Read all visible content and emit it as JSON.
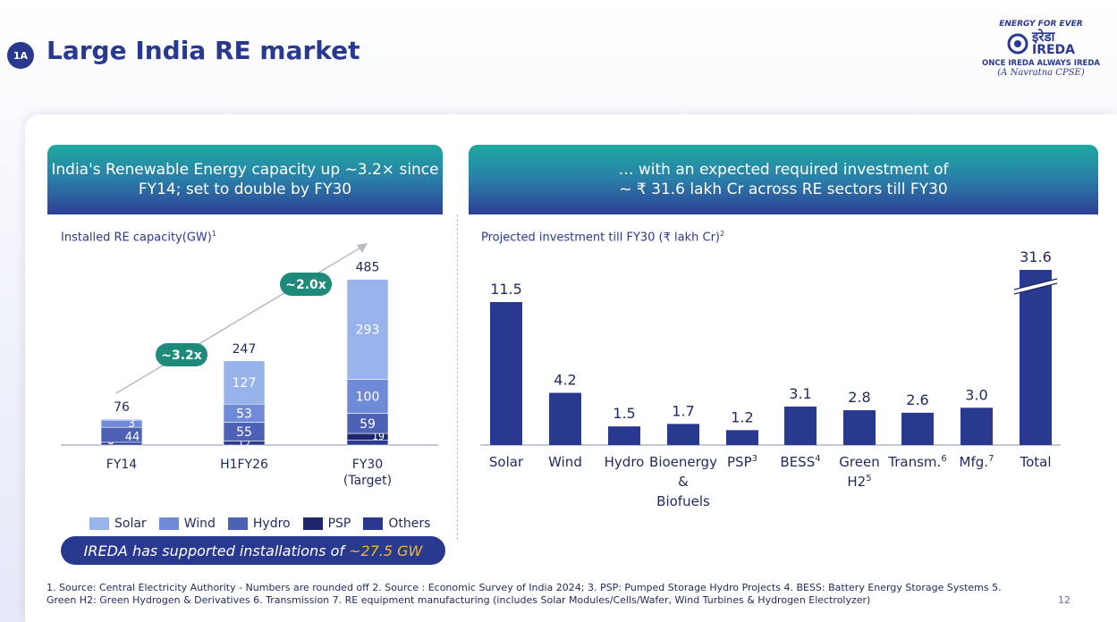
{
  "header": {
    "badge": "1A",
    "title": "Large India RE market"
  },
  "logo": {
    "tagline": "ENERGY FOR EVER",
    "hindi": "इरेडा",
    "name": "IREDA",
    "subtitle1": "ONCE IREDA ALWAYS IREDA",
    "subtitle2": "(A Navratna CPSE)"
  },
  "left_panel": {
    "heading_line1": "India's Renewable Energy capacity up ~3.2× since",
    "heading_line2": "FY14; set to double by FY30",
    "chart_subtitle": "Installed RE capacity(GW)",
    "chart_subtitle_sup": "1"
  },
  "right_panel": {
    "heading_line1": "… with an expected required investment of",
    "heading_line2": "~ ₹ 31.6 lakh Cr across RE sectors till FY30",
    "chart_subtitle": "Projected investment till FY30 (₹ lakh Cr)",
    "chart_subtitle_sup": "2"
  },
  "chart_data": [
    {
      "type": "bar",
      "stacked": true,
      "title": "Installed RE capacity(GW)",
      "categories": [
        "FY14",
        "H1FY26",
        "FY30"
      ],
      "category_sublabels": [
        "",
        "",
        "(Target)"
      ],
      "series": [
        {
          "name": "Others",
          "color": "#2a3990",
          "values": [
            8,
            12,
            15
          ]
        },
        {
          "name": "PSP",
          "color": "#1e266e",
          "values": [
            null,
            null,
            19
          ]
        },
        {
          "name": "Hydro",
          "color": "#4e62b5",
          "values": [
            44,
            55,
            59
          ]
        },
        {
          "name": "Wind",
          "color": "#6f8ad6",
          "values": [
            21,
            53,
            100
          ]
        },
        {
          "name": "Solar",
          "color": "#98b3ea",
          "values": [
            3,
            127,
            293
          ]
        }
      ],
      "totals": [
        76,
        247,
        485
      ],
      "growth_annotations": [
        "~3.2x",
        "~2.0x"
      ],
      "legend": [
        {
          "name": "Solar",
          "color": "#98b3ea"
        },
        {
          "name": "Wind",
          "color": "#6f8ad6"
        },
        {
          "name": "Hydro",
          "color": "#4e62b5"
        },
        {
          "name": "PSP",
          "color": "#1e266e"
        },
        {
          "name": "Others",
          "color": "#2a3990"
        }
      ],
      "ylim": [
        0,
        485
      ]
    },
    {
      "type": "bar",
      "title": "Projected investment till FY30 (₹ lakh Cr)",
      "categories": [
        "Solar",
        "Wind",
        "Hydro",
        "Bioenergy & Biofuels",
        "PSP",
        "BESS",
        "Green H2",
        "Transm.",
        "Mfg.",
        "Total"
      ],
      "category_lines": [
        [
          "Solar"
        ],
        [
          "Wind"
        ],
        [
          "Hydro"
        ],
        [
          "Bioenergy",
          "&",
          "Biofuels"
        ],
        [
          "PSP"
        ],
        [
          "BESS"
        ],
        [
          "Green",
          "H2"
        ],
        [
          "Transm."
        ],
        [
          "Mfg."
        ],
        [
          "Total"
        ]
      ],
      "category_sups": [
        "",
        "",
        "",
        "",
        "3",
        "4",
        "5",
        "6",
        "7",
        ""
      ],
      "values": [
        11.5,
        4.2,
        1.5,
        1.7,
        1.2,
        3.1,
        2.8,
        2.6,
        3.0,
        31.6
      ],
      "value_labels": [
        "11.5",
        "4.2",
        "1.5",
        "1.7",
        "1.2",
        "3.1",
        "2.8",
        "2.6",
        "3.0",
        "31.6"
      ],
      "broken_axis_bar": "Total",
      "color": "#2a3990"
    }
  ],
  "legend_labels": [
    "Solar",
    "Wind",
    "Hydro",
    "PSP",
    "Others"
  ],
  "banner": {
    "text": "IREDA has supported installations of",
    "highlight": "~27.5 GW"
  },
  "footnote": {
    "line1": "1. Source: Central Electricity Authority - Numbers are rounded off 2. Source : Economic Survey of India 2024; 3. PSP: Pumped Storage Hydro Projects 4. BESS: Battery Energy Storage Systems 5.",
    "line2": "Green H2: Green Hydrogen & Derivatives  6. Transmission 7. RE equipment manufacturing (includes Solar Modules/Cells/Wafer, Wind Turbines & Hydrogen Electrolyzer)"
  },
  "page_number": "12"
}
